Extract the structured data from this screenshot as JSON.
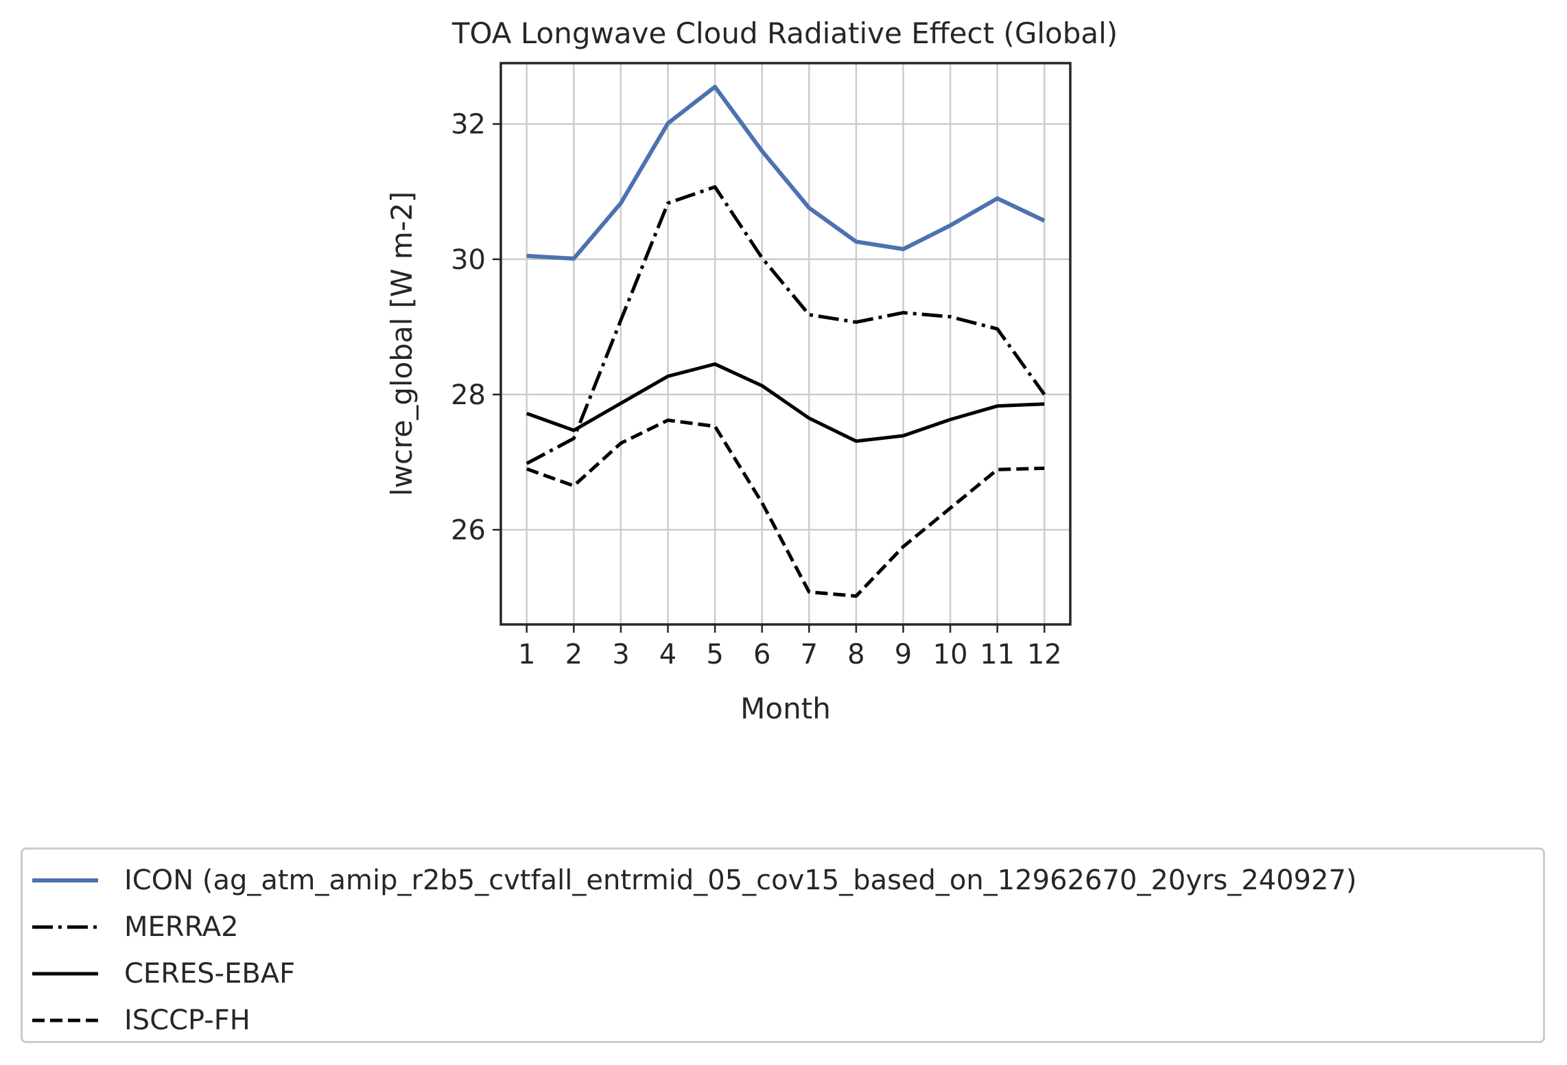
{
  "chart_data": {
    "type": "line",
    "title": "TOA Longwave Cloud Radiative Effect (Global)",
    "xlabel": "Month",
    "ylabel": "lwcre_global [W m-2]",
    "x": [
      1,
      2,
      3,
      4,
      5,
      6,
      7,
      8,
      9,
      10,
      11,
      12
    ],
    "xticks": [
      "1",
      "2",
      "3",
      "4",
      "5",
      "6",
      "7",
      "8",
      "9",
      "10",
      "11",
      "12"
    ],
    "yticks": [
      26,
      28,
      30,
      32
    ],
    "xlim": [
      0.45,
      12.55
    ],
    "ylim": [
      24.6,
      32.9
    ],
    "grid": true,
    "legend_position": "bottom",
    "series": [
      {
        "name": "ICON (ag_atm_amip_r2b5_cvtfall_entrmid_05_cov15_based_on_12962670_20yrs_240927)",
        "style": "solid",
        "color": "#4c72b0",
        "width": 6,
        "values": [
          30.05,
          30.01,
          30.83,
          32.01,
          32.55,
          31.6,
          30.76,
          30.26,
          30.15,
          30.5,
          30.9,
          30.57
        ]
      },
      {
        "name": "MERRA2",
        "style": "dashdot",
        "color": "#000000",
        "width": 5,
        "values": [
          26.98,
          27.35,
          29.1,
          30.83,
          31.07,
          30.02,
          29.18,
          29.07,
          29.21,
          29.15,
          28.97,
          28.0
        ]
      },
      {
        "name": "CERES-EBAF",
        "style": "solid",
        "color": "#000000",
        "width": 5,
        "values": [
          27.72,
          27.47,
          27.87,
          28.27,
          28.45,
          28.13,
          27.65,
          27.31,
          27.39,
          27.63,
          27.83,
          27.86
        ]
      },
      {
        "name": "ISCCP-FH",
        "style": "dashed",
        "color": "#000000",
        "width": 5,
        "values": [
          26.9,
          26.65,
          27.28,
          27.62,
          27.53,
          26.4,
          25.08,
          25.02,
          25.75,
          26.32,
          26.89,
          26.91
        ]
      }
    ]
  }
}
